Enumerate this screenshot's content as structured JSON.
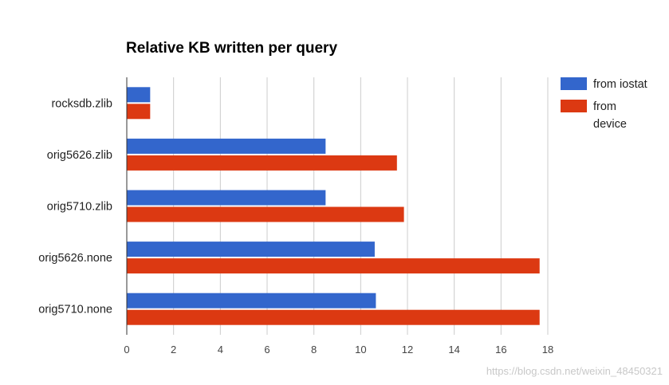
{
  "chart_data": {
    "type": "bar",
    "orientation": "horizontal",
    "title": "Relative KB written per query",
    "xlabel": "",
    "ylabel": "",
    "categories": [
      "rocksdb.zlib",
      "orig5626.zlib",
      "orig5710.zlib",
      "orig5626.none",
      "orig5710.none"
    ],
    "series": [
      {
        "name": "from iostat",
        "color": "#3366cc",
        "values": [
          1.0,
          8.5,
          8.5,
          10.6,
          10.65
        ]
      },
      {
        "name": "from device",
        "color": "#dc3912",
        "values": [
          1.0,
          11.55,
          11.85,
          17.65,
          17.65
        ]
      }
    ],
    "xlim": [
      0,
      18
    ],
    "xticks": [
      0,
      2,
      4,
      6,
      8,
      10,
      12,
      14,
      16,
      18
    ],
    "grid": true,
    "legend_position": "right-top"
  },
  "legend": {
    "iostat_label": "from iostat",
    "device_line1": "from",
    "device_line2": "device"
  },
  "watermark": "https://blog.csdn.net/weixin_48450321"
}
